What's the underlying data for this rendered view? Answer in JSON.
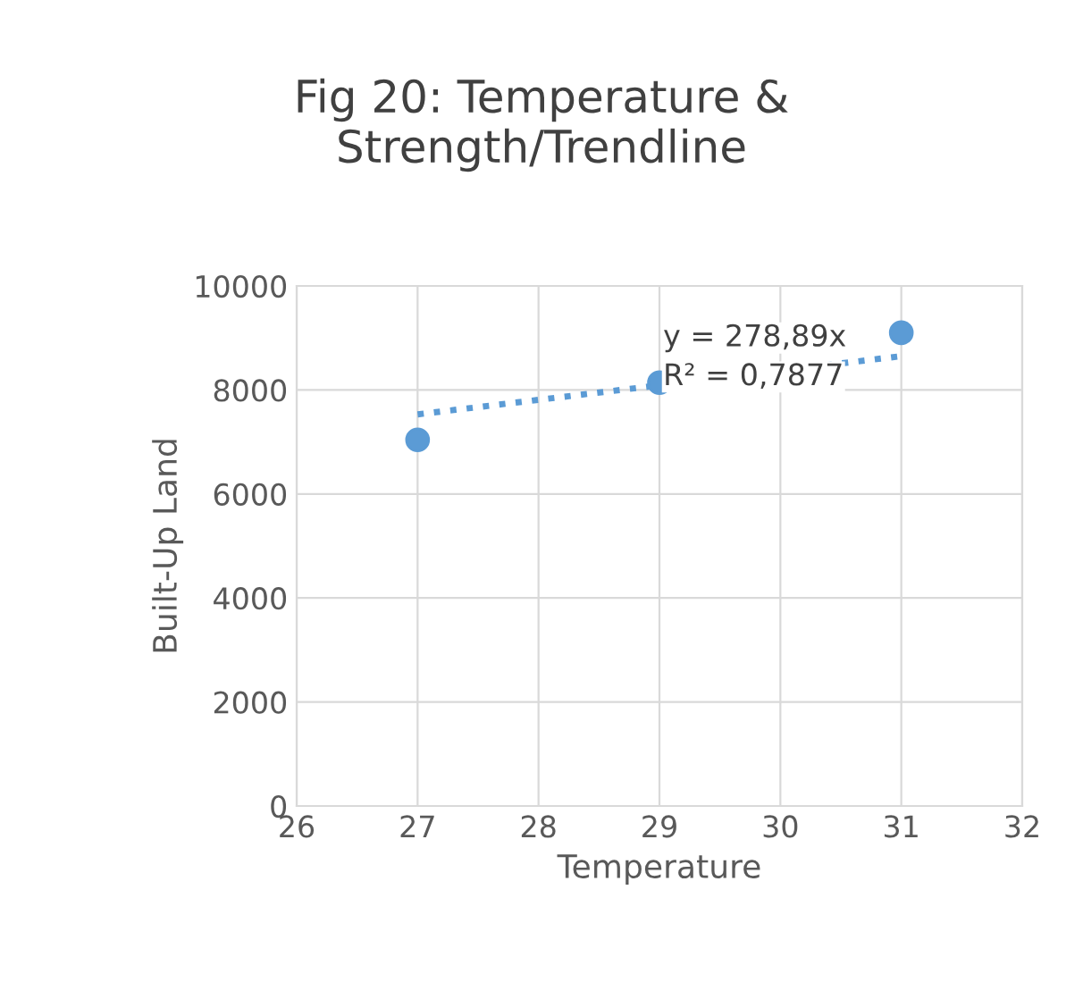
{
  "chart_data": {
    "type": "scatter",
    "title": "Fig 20: Temperature &\nStrength/Trendline",
    "xlabel": "Temperature",
    "ylabel": "Built-Up Land",
    "series": [
      {
        "color": "#5b9bd5",
        "x": [
          27,
          29,
          31
        ],
        "values": [
          7040,
          8140,
          9100
        ],
        "marker": "circle"
      },
      {
        "type": "line",
        "color": "#5b9bd5",
        "x": [
          27,
          31
        ],
        "values": [
          7530,
          8650
        ],
        "marker": "none",
        "line_style": "dotted"
      }
    ],
    "annotations": [
      "y = 278,89x",
      "R² = 0,7877"
    ],
    "xlim": [
      26,
      32
    ],
    "xticks": [
      26,
      27,
      28,
      29,
      30,
      31,
      32
    ],
    "ylim": [
      0,
      10000
    ],
    "yticks": [
      0,
      2000,
      4000,
      6000,
      8000,
      10000
    ],
    "grid": true,
    "legend": false
  }
}
